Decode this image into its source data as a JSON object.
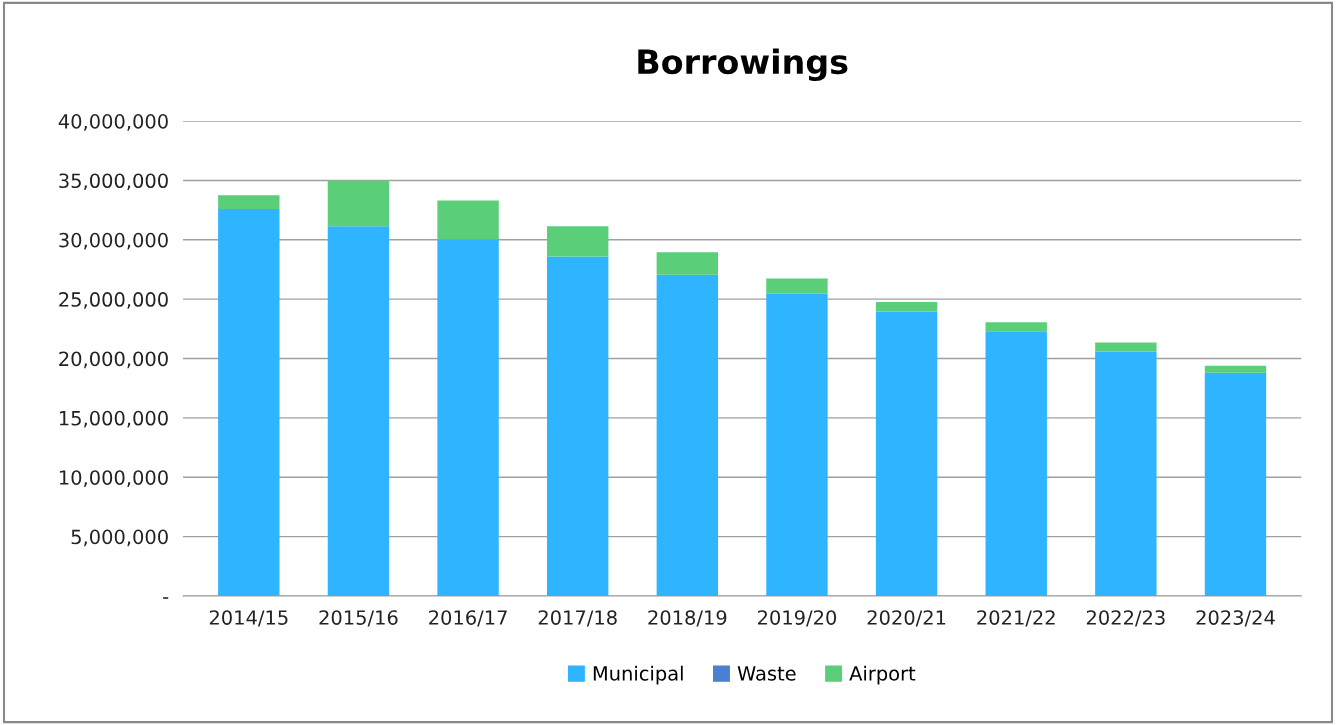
{
  "chart_data": {
    "type": "bar",
    "title": "Borrowings",
    "stacked": true,
    "categories": [
      "2014/15",
      "2015/16",
      "2016/17",
      "2017/18",
      "2018/19",
      "2019/20",
      "2020/21",
      "2021/22",
      "2022/23",
      "2023/24"
    ],
    "series": [
      {
        "name": "Municipal",
        "color": "#2fb4ff",
        "values": [
          32600000,
          31150000,
          30050000,
          28600000,
          27050000,
          25450000,
          23950000,
          22300000,
          20600000,
          18800000
        ]
      },
      {
        "name": "Waste",
        "color": "#4a80d0",
        "values": [
          0,
          0,
          0,
          0,
          0,
          0,
          0,
          0,
          0,
          0
        ]
      },
      {
        "name": "Airport",
        "color": "#5ace78",
        "values": [
          1150000,
          3850000,
          3250000,
          2550000,
          1900000,
          1300000,
          800000,
          750000,
          750000,
          600000
        ]
      }
    ],
    "ylim": [
      0,
      40000000
    ],
    "yticks": [
      {
        "value": 0,
        "label": "-"
      },
      {
        "value": 5000000,
        "label": "5,000,000"
      },
      {
        "value": 10000000,
        "label": "10,000,000"
      },
      {
        "value": 15000000,
        "label": "15,000,000"
      },
      {
        "value": 20000000,
        "label": "20,000,000"
      },
      {
        "value": 25000000,
        "label": "25,000,000"
      },
      {
        "value": 30000000,
        "label": "30,000,000"
      },
      {
        "value": 35000000,
        "label": "35,000,000"
      },
      {
        "value": 40000000,
        "label": "40,000,000"
      }
    ],
    "grid": "y",
    "legend": "bottom"
  }
}
